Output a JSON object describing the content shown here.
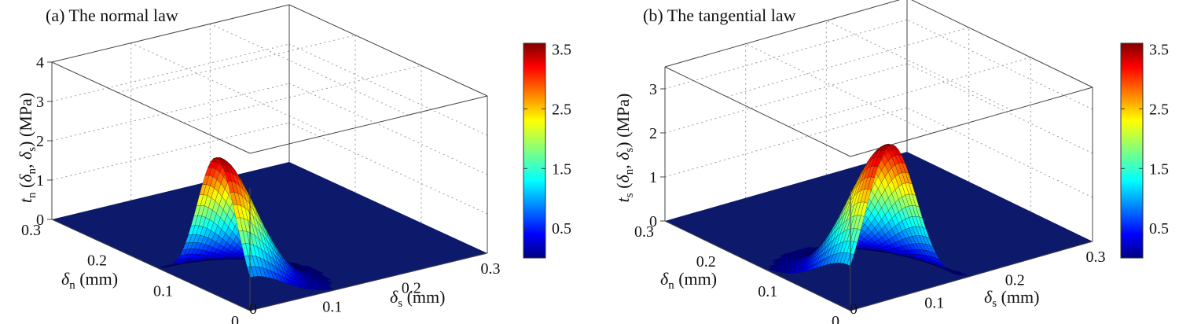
{
  "figure": {
    "colormap": "jet",
    "colors": {
      "floor": "#0d1a6b",
      "mesh_line": "#000000",
      "box_line": "#444444",
      "grid_line": "#9a9a9a"
    }
  },
  "chart_data": [
    {
      "type": "surface3d",
      "title": "(a) The normal law",
      "zlabel": {
        "main": "t",
        "sub": "n",
        "args": "(δn, δs) (MPa)",
        "arg1": "δ",
        "arg1_sub": "n",
        "arg2": "δ",
        "arg2_sub": "s",
        "unit": "(MPa)"
      },
      "ylabel": {
        "main": "δ",
        "sub": "n",
        "unit": "(mm)"
      },
      "xlabel": {
        "main": "δ",
        "sub": "s",
        "unit": "(mm)"
      },
      "x_name": "δs (mm)",
      "y_name": "δn (mm)",
      "xlim": [
        0,
        0.3
      ],
      "ylim": [
        0,
        0.3
      ],
      "zlim": [
        0,
        4
      ],
      "xticks": [
        "0",
        "0.1",
        "0.2",
        "0.3"
      ],
      "yticks": [
        "0",
        "0.1",
        "0.2",
        "0.3"
      ],
      "zticks": [
        "0",
        "1",
        "2",
        "3",
        "4"
      ],
      "surface_peak": {
        "dn": 0.05,
        "ds": 0.0,
        "value": 3.5
      },
      "colorbar": {
        "ticks": [
          "0.5",
          "1.5",
          "2.5",
          "3.5"
        ],
        "range": [
          0,
          3.6
        ]
      }
    },
    {
      "type": "surface3d",
      "title": "(b) The tangential law",
      "zlabel": {
        "main": "t",
        "sub": "s",
        "args": "(δn, δs) (MPa)",
        "arg1": "δ",
        "arg1_sub": "n",
        "arg2": "δ",
        "arg2_sub": "s",
        "unit": "(MPa)"
      },
      "ylabel": {
        "main": "δ",
        "sub": "n",
        "unit": "(mm)"
      },
      "xlabel": {
        "main": "δ",
        "sub": "s",
        "unit": "(mm)"
      },
      "x_name": "δs (mm)",
      "y_name": "δn (mm)",
      "xlim": [
        0,
        0.3
      ],
      "ylim": [
        0,
        0.3
      ],
      "zlim": [
        0,
        3.5
      ],
      "xticks": [
        "0",
        "0.1",
        "0.2",
        "0.3"
      ],
      "yticks": [
        "0",
        "0.1",
        "0.2",
        "0.3"
      ],
      "zticks": [
        "0",
        "1",
        "2",
        "3"
      ],
      "surface_peak": {
        "dn": 0.0,
        "ds": 0.05,
        "value": 3.5
      },
      "colorbar": {
        "ticks": [
          "0.5",
          "1.5",
          "2.5",
          "3.5"
        ],
        "range": [
          0,
          3.6
        ]
      }
    }
  ]
}
